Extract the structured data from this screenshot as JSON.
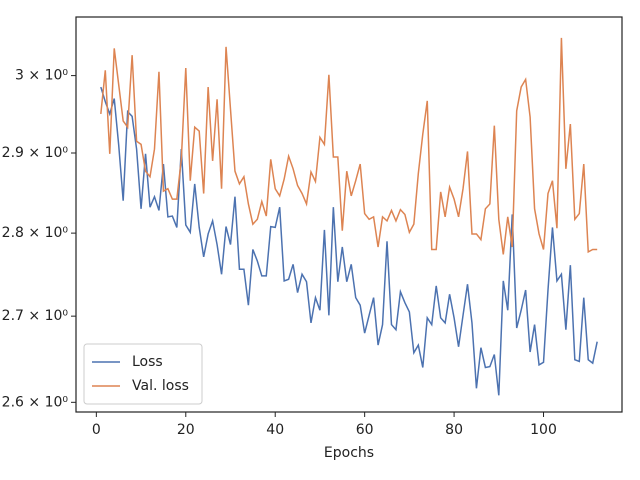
{
  "chart_data": {
    "type": "line",
    "x_label": "Epochs",
    "x": [
      1,
      2,
      3,
      4,
      5,
      6,
      7,
      8,
      9,
      10,
      11,
      12,
      13,
      14,
      15,
      16,
      17,
      18,
      19,
      20,
      21,
      22,
      23,
      24,
      25,
      26,
      27,
      28,
      29,
      30,
      31,
      32,
      33,
      34,
      35,
      36,
      37,
      38,
      39,
      40,
      41,
      42,
      43,
      44,
      45,
      46,
      47,
      48,
      49,
      50,
      51,
      52,
      53,
      54,
      55,
      56,
      57,
      58,
      59,
      60,
      61,
      62,
      63,
      64,
      65,
      66,
      67,
      68,
      69,
      70,
      71,
      72,
      73,
      74,
      75,
      76,
      77,
      78,
      79,
      80,
      81,
      82,
      83,
      84,
      85,
      86,
      87,
      88,
      89,
      90,
      91,
      92,
      93,
      94,
      95,
      96,
      97,
      98,
      99,
      100,
      101,
      102,
      103,
      104,
      105,
      106,
      107,
      108,
      109,
      110,
      111,
      112
    ],
    "series": [
      {
        "name": "Loss",
        "color": "#4c72b0",
        "values": [
          2.985,
          2.966,
          2.95,
          2.97,
          2.91,
          2.84,
          2.953,
          2.947,
          2.905,
          2.83,
          2.899,
          2.832,
          2.845,
          2.828,
          2.886,
          2.82,
          2.821,
          2.807,
          2.905,
          2.81,
          2.801,
          2.861,
          2.807,
          2.771,
          2.799,
          2.815,
          2.786,
          2.75,
          2.808,
          2.786,
          2.845,
          2.756,
          2.756,
          2.713,
          2.78,
          2.766,
          2.748,
          2.748,
          2.808,
          2.807,
          2.832,
          2.742,
          2.744,
          2.762,
          2.728,
          2.75,
          2.741,
          2.692,
          2.722,
          2.707,
          2.804,
          2.701,
          2.832,
          2.741,
          2.783,
          2.741,
          2.762,
          2.722,
          2.713,
          2.68,
          2.701,
          2.722,
          2.666,
          2.69,
          2.79,
          2.69,
          2.684,
          2.729,
          2.716,
          2.705,
          2.657,
          2.666,
          2.64,
          2.698,
          2.69,
          2.736,
          2.698,
          2.692,
          2.726,
          2.698,
          2.664,
          2.701,
          2.738,
          2.692,
          2.616,
          2.663,
          2.64,
          2.641,
          2.655,
          2.608,
          2.742,
          2.707,
          2.823,
          2.686,
          2.707,
          2.731,
          2.658,
          2.69,
          2.643,
          2.646,
          2.731,
          2.807,
          2.742,
          2.75,
          2.684,
          2.761,
          2.649,
          2.647,
          2.722,
          2.649,
          2.645,
          2.67
        ]
      },
      {
        "name": "Val. loss",
        "color": "#dd8452",
        "values": [
          2.95,
          3.007,
          2.899,
          3.036,
          2.988,
          2.941,
          2.933,
          3.027,
          2.915,
          2.911,
          2.877,
          2.87,
          2.905,
          3.005,
          2.852,
          2.855,
          2.842,
          2.842,
          2.892,
          3.01,
          2.865,
          2.933,
          2.928,
          2.849,
          2.985,
          2.89,
          2.969,
          2.855,
          3.038,
          2.956,
          2.877,
          2.861,
          2.87,
          2.836,
          2.811,
          2.817,
          2.839,
          2.821,
          2.892,
          2.855,
          2.846,
          2.867,
          2.896,
          2.88,
          2.859,
          2.849,
          2.836,
          2.876,
          2.864,
          2.92,
          2.911,
          3.001,
          2.895,
          2.895,
          2.803,
          2.877,
          2.846,
          2.865,
          2.886,
          2.824,
          2.817,
          2.82,
          2.783,
          2.82,
          2.815,
          2.828,
          2.815,
          2.829,
          2.823,
          2.801,
          2.811,
          2.874,
          2.924,
          2.967,
          2.78,
          2.78,
          2.851,
          2.82,
          2.857,
          2.842,
          2.82,
          2.855,
          2.902,
          2.799,
          2.799,
          2.792,
          2.83,
          2.836,
          2.935,
          2.817,
          2.774,
          2.82,
          2.783,
          2.954,
          2.985,
          2.995,
          2.946,
          2.83,
          2.799,
          2.78,
          2.849,
          2.865,
          2.806,
          3.05,
          2.88,
          2.937,
          2.817,
          2.824,
          2.886,
          2.777,
          2.78,
          2.78
        ]
      }
    ],
    "xlim": [
      -4.55,
      117.55
    ],
    "xticks": [
      0,
      20,
      40,
      60,
      80,
      100
    ],
    "ylim": [
      2.589,
      3.078
    ],
    "y_scale": "log",
    "yticks": [
      {
        "value": 2.6,
        "label": "2.6 × 10⁰"
      },
      {
        "value": 2.7,
        "label": "2.7 × 10⁰"
      },
      {
        "value": 2.8,
        "label": "2.8 × 10⁰"
      },
      {
        "value": 2.9,
        "label": "2.9 × 10⁰"
      },
      {
        "value": 3,
        "label": "3 × 10⁰"
      }
    ],
    "legend": "lower left"
  }
}
